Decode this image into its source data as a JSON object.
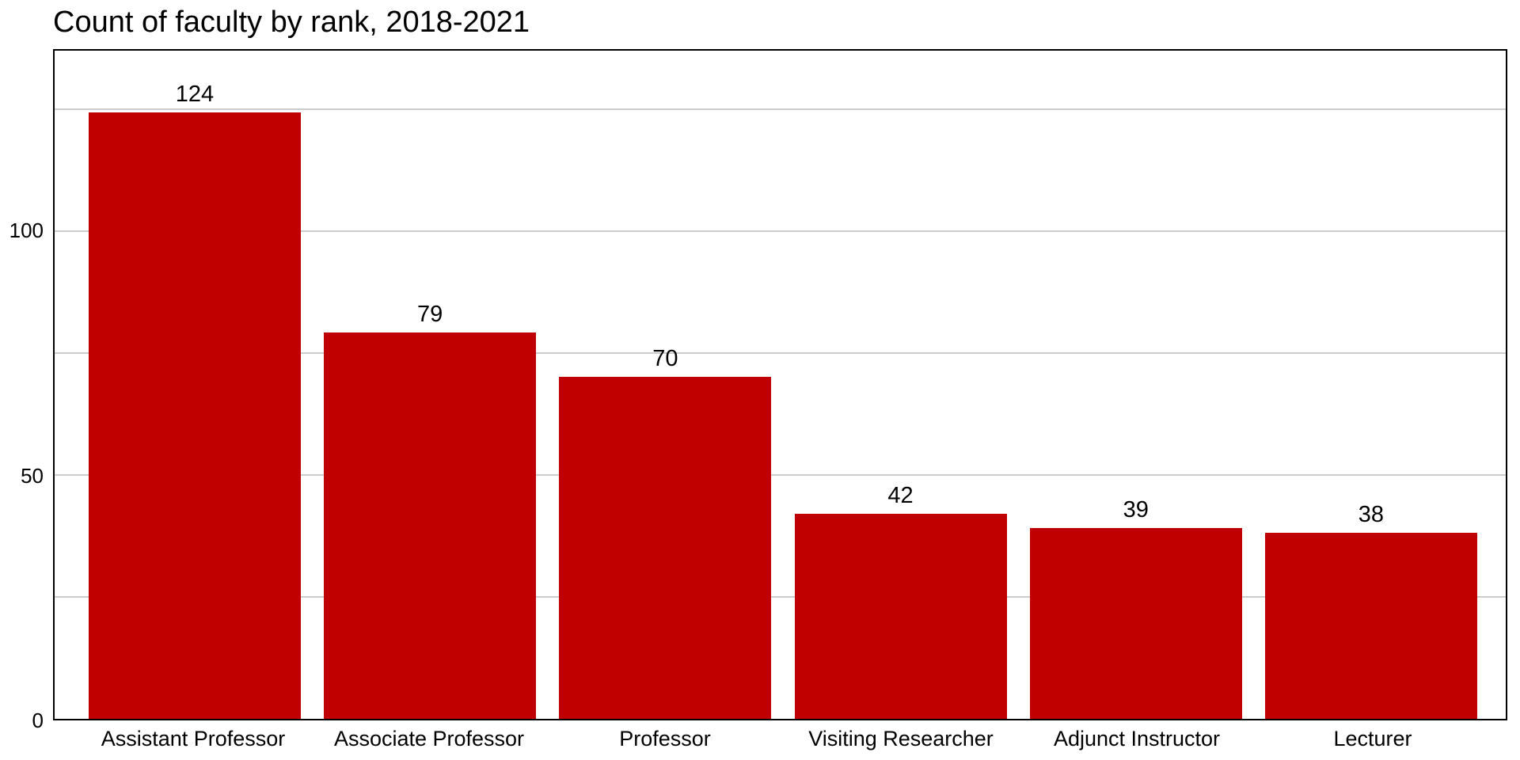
{
  "chart_data": {
    "type": "bar",
    "title": "Count of faculty by rank, 2018-2021",
    "categories": [
      "Assistant Professor",
      "Associate Professor",
      "Professor",
      "Visiting Researcher",
      "Adjunct Instructor",
      "Lecturer"
    ],
    "values": [
      124,
      79,
      70,
      42,
      39,
      38
    ],
    "value_labels": [
      "124",
      "79",
      "70",
      "42",
      "39",
      "38"
    ],
    "ytick_labels": [
      "0",
      "50",
      "100"
    ],
    "yticks": [
      0,
      50,
      100
    ],
    "gridlines": [
      25,
      50,
      75,
      100,
      125
    ],
    "ylim": [
      0,
      137
    ],
    "xlabel": "",
    "ylabel": "",
    "legend": "none",
    "grid": "horizontal",
    "colors": {
      "bar": "#c00000",
      "gridline": "#cccccc",
      "plot_border": "#000000",
      "text": "#000000",
      "background": "#ffffff"
    }
  }
}
